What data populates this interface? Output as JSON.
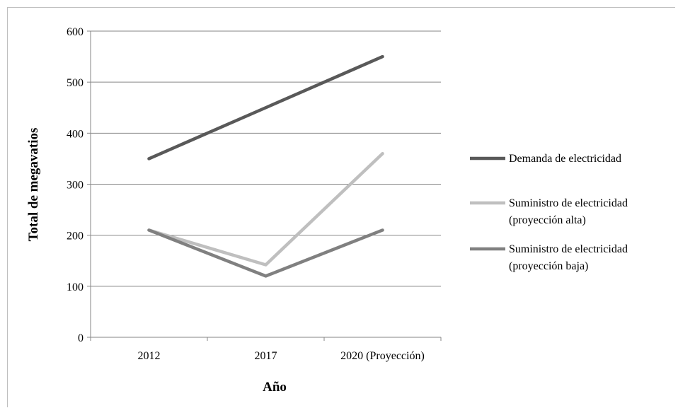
{
  "chart_data": {
    "type": "line",
    "categories": [
      "2012",
      "2017",
      "2020 (Proyección)"
    ],
    "series": [
      {
        "name": "Demanda de electricidad",
        "values": [
          350,
          450,
          550
        ],
        "color": "#595959"
      },
      {
        "name": "Suministro de electricidad (proyección alta)",
        "name_lines": [
          "Suministro de electricidad",
          "(proyección alta)"
        ],
        "values": [
          210,
          142,
          360
        ],
        "color": "#bfbfbf"
      },
      {
        "name": "Suministro de electricidad (proyección baja)",
        "name_lines": [
          "Suministro de electricidad",
          "(proyección baja)"
        ],
        "values": [
          210,
          120,
          210
        ],
        "color": "#808080"
      }
    ],
    "xlabel": "Año",
    "ylabel": "Total de megavatios",
    "ylim": [
      0,
      600
    ],
    "yticks": [
      0,
      100,
      200,
      300,
      400,
      500,
      600
    ],
    "grid": true,
    "legend_position": "right"
  }
}
